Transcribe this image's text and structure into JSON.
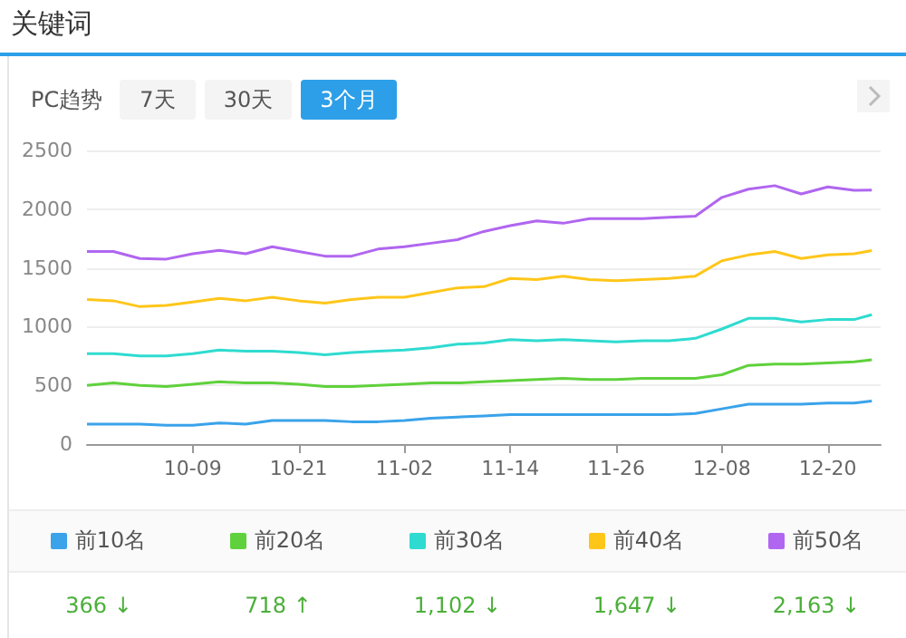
{
  "chart_data": {
    "type": "line",
    "title": "关键词",
    "annotations": [
      "PC趋势",
      "7天",
      "30天",
      "3个月",
      "366 ↓",
      "718 ↑",
      "1,102 ↓",
      "1,647 ↓",
      "2,163 ↓"
    ],
    "x": [
      "--09-27",
      "--09-30",
      "--10-03",
      "--10-06",
      "--10-09",
      "--10-12",
      "--10-15",
      "--10-18",
      "--10-21",
      "--10-24",
      "--10-27",
      "--10-30",
      "--11-02",
      "--11-05",
      "--11-08",
      "--11-11",
      "--11-14",
      "--11-17",
      "--11-20",
      "--11-23",
      "--11-26",
      "--11-29",
      "--12-02",
      "--12-05",
      "--12-08",
      "--12-11",
      "--12-14",
      "--12-17",
      "--12-20",
      "--12-23",
      "--12-25"
    ],
    "xlim": [
      "--09-27",
      "--12-26"
    ],
    "xticks": [
      {
        "value": "--10-09",
        "label": "10-09"
      },
      {
        "value": "--10-21",
        "label": "10-21"
      },
      {
        "value": "--11-02",
        "label": "11-02"
      },
      {
        "value": "--11-14",
        "label": "11-14"
      },
      {
        "value": "--11-26",
        "label": "11-26"
      },
      {
        "value": "--12-08",
        "label": "12-08"
      },
      {
        "value": "--12-20",
        "label": "12-20"
      }
    ],
    "ylim": [
      0,
      2500
    ],
    "yticks": [
      0,
      500,
      1000,
      1500,
      2000,
      2500
    ],
    "grid": "y",
    "legend": "bottom",
    "marker": "none",
    "line_style": "solid",
    "series": [
      {
        "name": "前10名",
        "color": "#3aa3ea",
        "values": [
          170,
          170,
          170,
          160,
          160,
          180,
          170,
          200,
          200,
          200,
          190,
          190,
          200,
          220,
          230,
          240,
          250,
          250,
          250,
          250,
          250,
          250,
          250,
          260,
          300,
          340,
          340,
          340,
          350,
          350,
          366
        ]
      },
      {
        "name": "前20名",
        "color": "#5fd13c",
        "values": [
          500,
          520,
          500,
          490,
          510,
          530,
          520,
          520,
          510,
          490,
          490,
          500,
          510,
          520,
          520,
          530,
          540,
          550,
          560,
          550,
          550,
          560,
          560,
          560,
          590,
          670,
          680,
          680,
          690,
          700,
          718
        ]
      },
      {
        "name": "前30名",
        "color": "#2fdbd0",
        "values": [
          770,
          770,
          750,
          750,
          770,
          800,
          790,
          790,
          780,
          760,
          780,
          790,
          800,
          820,
          850,
          860,
          890,
          880,
          890,
          880,
          870,
          880,
          880,
          900,
          980,
          1070,
          1070,
          1040,
          1060,
          1060,
          1102
        ]
      },
      {
        "name": "前40名",
        "color": "#ffc61a",
        "values": [
          1230,
          1220,
          1170,
          1180,
          1210,
          1240,
          1220,
          1250,
          1220,
          1200,
          1230,
          1250,
          1250,
          1290,
          1330,
          1340,
          1410,
          1400,
          1430,
          1400,
          1390,
          1400,
          1410,
          1430,
          1560,
          1610,
          1640,
          1580,
          1610,
          1620,
          1647
        ]
      },
      {
        "name": "前50名",
        "color": "#b066f0",
        "values": [
          1640,
          1640,
          1580,
          1575,
          1620,
          1650,
          1620,
          1680,
          1640,
          1600,
          1600,
          1660,
          1680,
          1710,
          1740,
          1810,
          1860,
          1900,
          1880,
          1920,
          1920,
          1920,
          1930,
          1940,
          2100,
          2170,
          2200,
          2130,
          2190,
          2160,
          2163
        ]
      }
    ]
  }
}
